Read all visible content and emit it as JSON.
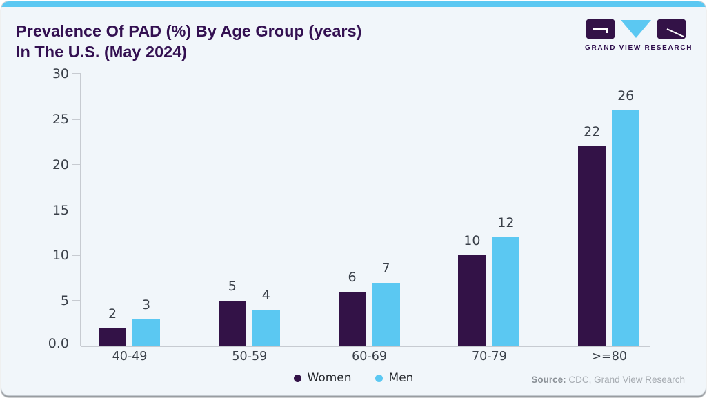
{
  "header": {
    "title_line1": "Prevalence Of PAD (%) By Age Group (years)",
    "title_line2": "In The U.S. (May 2024)",
    "logo_text": "GRAND VIEW RESEARCH"
  },
  "chart_data": {
    "type": "bar",
    "title": "Prevalence Of PAD (%) By Age Group (years) In The U.S. (May 2024)",
    "categories": [
      "40-49",
      "50-59",
      "60-69",
      "70-79",
      ">=80"
    ],
    "series": [
      {
        "name": "Women",
        "color": "#331247",
        "values": [
          2,
          5,
          6,
          10,
          22
        ]
      },
      {
        "name": "Men",
        "color": "#5BC8F2",
        "values": [
          3,
          4,
          7,
          12,
          26
        ]
      }
    ],
    "xlabel": "",
    "ylabel": "",
    "ylim": [
      0,
      30
    ],
    "yticks": [
      {
        "value": 30,
        "label": "30"
      },
      {
        "value": 25,
        "label": "25"
      },
      {
        "value": 20,
        "label": "20"
      },
      {
        "value": 15,
        "label": "15"
      },
      {
        "value": 10,
        "label": "10"
      },
      {
        "value": 5,
        "label": "5"
      },
      {
        "value": 0,
        "label": "0.0"
      }
    ],
    "grid": false,
    "legend_position": "bottom-center"
  },
  "footer": {
    "source_label": "Source:",
    "source_value": " CDC, Grand View Research"
  },
  "colors": {
    "accent_blue": "#5BC8F2",
    "brand_purple": "#331247",
    "title_purple": "#331051",
    "card_background": "#F1F6FA",
    "axis_gray": "#C7CBD1",
    "label_gray": "#3A4049"
  }
}
